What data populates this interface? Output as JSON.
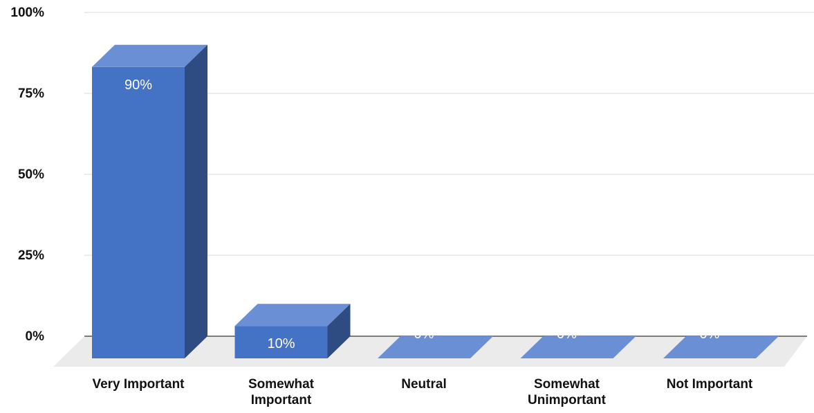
{
  "chart_data": {
    "type": "bar",
    "title": "",
    "xlabel": "",
    "ylabel": "",
    "categories": [
      [
        "Very Important"
      ],
      [
        "Somewhat",
        "Important"
      ],
      [
        "Neutral"
      ],
      [
        "Somewhat",
        "Unimportant"
      ],
      [
        "Not Important"
      ]
    ],
    "values": [
      90,
      10,
      0,
      0,
      0
    ],
    "data_labels": [
      "90%",
      "10%",
      "0%",
      "0%",
      "0%"
    ],
    "ylim": [
      0,
      100
    ],
    "yticks": [
      {
        "value": 100,
        "label": "100%"
      },
      {
        "value": 75,
        "label": "75%"
      },
      {
        "value": 50,
        "label": "50%"
      },
      {
        "value": 25,
        "label": "25%"
      },
      {
        "value": 0,
        "label": "0%"
      }
    ],
    "grid": true,
    "style": "3d-column",
    "colors": {
      "bar_front": "#4472c4",
      "bar_top": "#6a8fd4",
      "bar_side": "#2e4c82",
      "floor": "#ebebeb",
      "gridline": "#d9d9d9",
      "axis_line": "#333333"
    }
  }
}
